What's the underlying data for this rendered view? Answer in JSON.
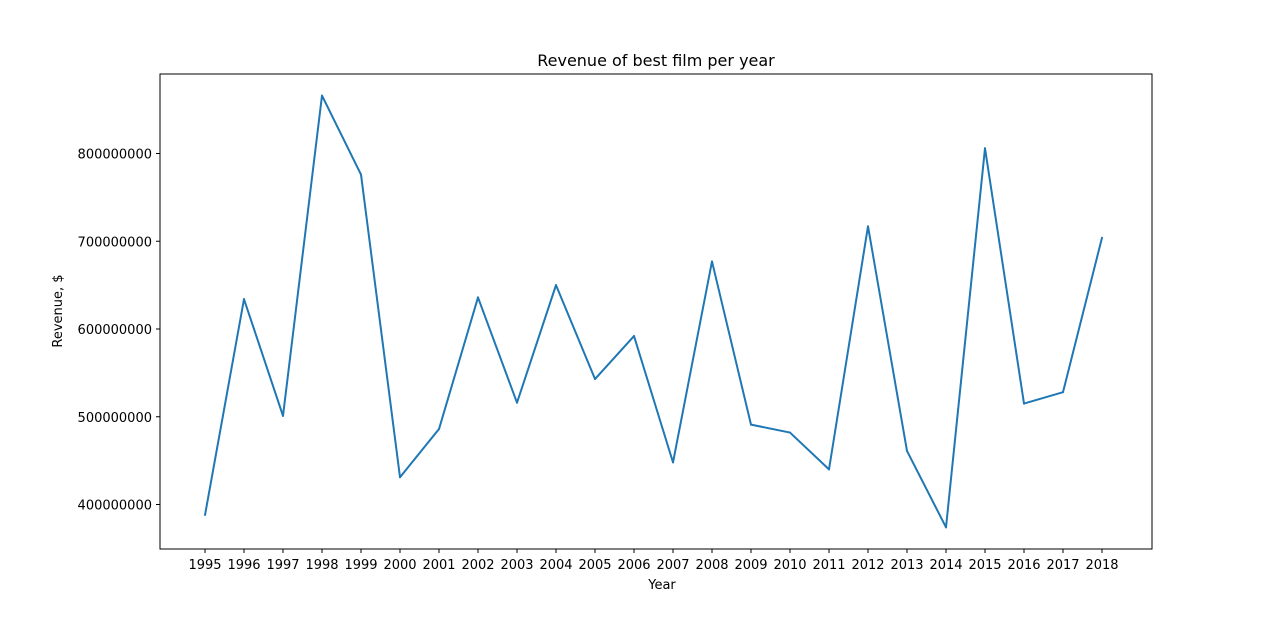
{
  "chart_data": {
    "type": "line",
    "title": "Revenue of best film per year",
    "xlabel": "Year",
    "ylabel": "Revenue, $",
    "categories": [
      "1995",
      "1996",
      "1997",
      "1998",
      "1999",
      "2000",
      "2001",
      "2002",
      "2003",
      "2004",
      "2005",
      "2006",
      "2007",
      "2008",
      "2009",
      "2010",
      "2011",
      "2012",
      "2013",
      "2014",
      "2015",
      "2016",
      "2017",
      "2018"
    ],
    "series": [
      {
        "values": [
          388000000,
          634000000,
          501000000,
          866000000,
          776000000,
          431000000,
          486000000,
          636000000,
          516000000,
          650000000,
          543000000,
          592000000,
          448000000,
          677000000,
          491000000,
          482000000,
          440000000,
          717000000,
          461000000,
          374000000,
          806000000,
          515000000,
          528000000,
          704000000
        ],
        "color": "#1f77b4"
      }
    ],
    "yticks": [
      400000000,
      500000000,
      600000000,
      700000000,
      800000000
    ],
    "ytick_labels": [
      "400000000",
      "500000000",
      "600000000",
      "700000000",
      "800000000"
    ],
    "ylim": [
      350000000,
      891000000
    ],
    "grid": false,
    "legend": "none"
  }
}
